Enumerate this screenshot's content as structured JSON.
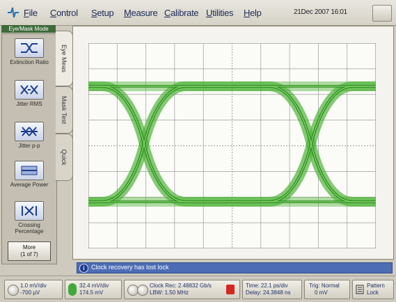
{
  "menu": {
    "items": [
      "File",
      "Control",
      "Setup",
      "Measure",
      "Calibrate",
      "Utilities",
      "Help"
    ],
    "datetime": "21Dec 2007  16:01"
  },
  "toolbar": {
    "mode_label": "Eye/Mask Mode",
    "tools": [
      {
        "icon": "eye-diagram-icon",
        "label": "Extinction Ratio"
      },
      {
        "icon": "jitter-icon",
        "label": "Jitter RMS"
      },
      {
        "icon": "jitter-pp-icon",
        "label": "Jitter p-p"
      },
      {
        "icon": "average-power-icon",
        "label": "Average Power"
      },
      {
        "icon": "crossing-icon",
        "label": "Crossing Percentage"
      }
    ],
    "more": {
      "line1": "More",
      "line2": "(1 of 7)"
    }
  },
  "tabs": [
    "Eye Meas",
    "Mask Test",
    "Quick"
  ],
  "display": {
    "trace_color": "#4fb33a",
    "grid_color": "#9c9c9c"
  },
  "status": {
    "message": "Clock recovery has lost lock"
  },
  "bottom": {
    "ch_a": {
      "line1": "1.0 mV/div",
      "line2": "-700 µV"
    },
    "ch_b": {
      "line1": "32.4 mV/div",
      "line2": "174.5 mV"
    },
    "clock": {
      "line1": "Clock Rec: 2.48832 Gb/s",
      "line2": "LBW: 1.50 MHz"
    },
    "time": {
      "line1": "Time: 22.1 ps/div",
      "line2": "Delay: 24.3848 ns"
    },
    "trig": {
      "line1": "Trig: Normal",
      "line2": "0 mV"
    },
    "pattern": {
      "line1": "Pattern",
      "line2": "Lock"
    }
  }
}
